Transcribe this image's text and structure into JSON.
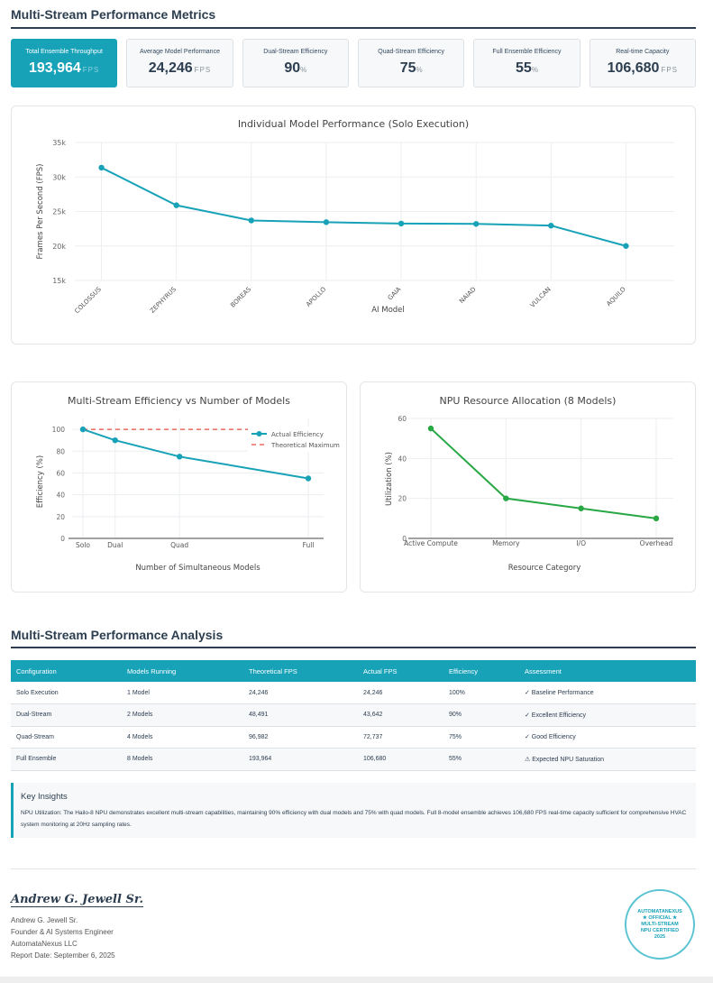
{
  "header": {
    "title": "Multi-Stream Performance Metrics"
  },
  "metrics": [
    {
      "label": "Total Ensemble Throughput",
      "value": "193,964",
      "unit": "FPS",
      "highlight": true
    },
    {
      "label": "Average Model Performance",
      "value": "24,246",
      "unit": "FPS"
    },
    {
      "label": "Dual-Stream Efficiency",
      "value": "90",
      "unit": "%"
    },
    {
      "label": "Quad-Stream Efficiency",
      "value": "75",
      "unit": "%"
    },
    {
      "label": "Full Ensemble Efficiency",
      "value": "55",
      "unit": "%"
    },
    {
      "label": "Real-time Capacity",
      "value": "106,680",
      "unit": "FPS"
    }
  ],
  "colors": {
    "accent": "#17a2b8",
    "green": "#28a745",
    "red_dashed": "#e74c3c",
    "dark": "#2c3e50"
  },
  "chart_data": [
    {
      "type": "line",
      "title": "Individual Model Performance (Solo Execution)",
      "xlabel": "AI Model",
      "ylabel": "Frames Per Second (FPS)",
      "categories": [
        "COLOSSUS",
        "ZEPHYRUS",
        "BOREAS",
        "APOLLO",
        "GAIA",
        "NAIAD",
        "VULCAN",
        "AQUILO"
      ],
      "values": [
        31350,
        25900,
        23700,
        23450,
        23250,
        23200,
        22950,
        20000
      ],
      "ylim": [
        15000,
        35000
      ],
      "yticks": [
        15000,
        20000,
        25000,
        30000,
        35000
      ],
      "ytick_labels": [
        "15k",
        "20k",
        "25k",
        "30k",
        "35k"
      ],
      "grid": true,
      "color": "#17a2b8"
    },
    {
      "type": "line",
      "title": "Multi-Stream Efficiency vs Number of Models",
      "xlabel": "Number of Simultaneous Models",
      "ylabel": "Efficiency (%)",
      "x": [
        1,
        2,
        4,
        8
      ],
      "categories": [
        "Solo",
        "Dual",
        "Quad",
        "Full"
      ],
      "series": [
        {
          "name": "Actual Efficiency",
          "values": [
            100,
            90,
            75,
            55
          ],
          "color": "#17a2b8",
          "style": "solid-markers"
        },
        {
          "name": "Theoretical Maximum",
          "values": [
            100,
            100,
            100,
            100
          ],
          "color": "#e74c3c",
          "style": "dashed"
        }
      ],
      "ylim": [
        0,
        110
      ],
      "yticks": [
        0,
        20,
        40,
        60,
        80,
        100
      ],
      "legend": "top-right",
      "grid": true
    },
    {
      "type": "line",
      "title": "NPU Resource Allocation (8 Models)",
      "xlabel": "Resource Category",
      "ylabel": "Utilization (%)",
      "categories": [
        "Active Compute",
        "Memory",
        "I/O",
        "Overhead"
      ],
      "values": [
        55,
        20,
        15,
        10
      ],
      "ylim": [
        0,
        60
      ],
      "yticks": [
        0,
        20,
        40,
        60
      ],
      "grid": true,
      "color": "#28a745"
    }
  ],
  "analysis": {
    "title": "Multi-Stream Performance Analysis",
    "columns": [
      "Configuration",
      "Models Running",
      "Theoretical FPS",
      "Actual FPS",
      "Efficiency",
      "Assessment"
    ],
    "rows": [
      [
        "Solo Execution",
        "1 Model",
        "24,246",
        "24,246",
        "100%",
        "✓ Baseline Performance"
      ],
      [
        "Dual-Stream",
        "2 Models",
        "48,491",
        "43,642",
        "90%",
        "✓ Excellent Efficiency"
      ],
      [
        "Quad-Stream",
        "4 Models",
        "96,982",
        "72,737",
        "75%",
        "✓ Good Efficiency"
      ],
      [
        "Full Ensemble",
        "8 Models",
        "193,964",
        "106,680",
        "55%",
        "⚠ Expected NPU Saturation"
      ]
    ]
  },
  "insights": {
    "title": "Key Insights",
    "text": "NPU Utilization: The Hailo-8 NPU demonstrates excellent multi-stream capabilities, maintaining 90% efficiency with dual models and 75% with quad models. Full 8-model ensemble achieves 106,680 FPS real-time capacity sufficient for comprehensive HVAC system monitoring at 20Hz sampling rates."
  },
  "footer": {
    "signature": "Andrew G. Jewell Sr.",
    "name": "Andrew G. Jewell Sr.",
    "role": "Founder & AI Systems Engineer",
    "company": "AutomataNexus LLC",
    "report_date": "Report Date: September 6, 2025",
    "stamp_lines": [
      "AUTOMATANEXUS",
      "★ OFFICIAL ★",
      "MULTI-STREAM",
      "NPU CERTIFIED",
      "2025"
    ]
  }
}
